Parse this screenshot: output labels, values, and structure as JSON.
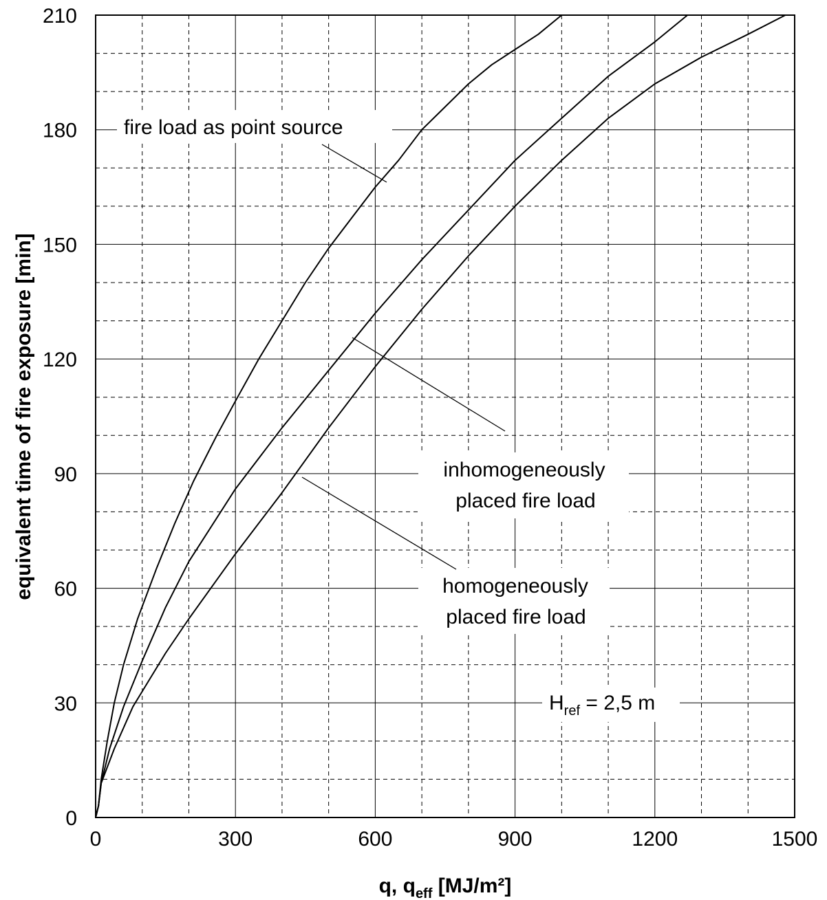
{
  "chart_data": {
    "type": "line",
    "xlabel": {
      "main": "q, q",
      "sub": "eff",
      "tail": " [MJ/m²]"
    },
    "ylabel": "equivalent time of fire exposure [min]",
    "xlim": [
      0,
      1500
    ],
    "ylim": [
      0,
      210
    ],
    "x_ticks": [
      0,
      300,
      600,
      900,
      1200,
      1500
    ],
    "y_ticks": [
      0,
      30,
      60,
      90,
      120,
      150,
      180,
      210
    ],
    "x_minor_step": 100,
    "y_minor_step": 10,
    "grid": true,
    "series": [
      {
        "key": "point",
        "points": [
          [
            0,
            0
          ],
          [
            6,
            3
          ],
          [
            12,
            10
          ],
          [
            25,
            20
          ],
          [
            40,
            30
          ],
          [
            60,
            40
          ],
          [
            90,
            52
          ],
          [
            130,
            65
          ],
          [
            170,
            77
          ],
          [
            210,
            88
          ],
          [
            260,
            100
          ],
          [
            300,
            109
          ],
          [
            350,
            120
          ],
          [
            400,
            130
          ],
          [
            450,
            140
          ],
          [
            500,
            149
          ],
          [
            550,
            157
          ],
          [
            600,
            165
          ],
          [
            650,
            172
          ],
          [
            700,
            180
          ],
          [
            750,
            186
          ],
          [
            800,
            192
          ],
          [
            850,
            197
          ],
          [
            900,
            201
          ],
          [
            950,
            205
          ],
          [
            1000,
            210
          ]
        ]
      },
      {
        "key": "inhomogeneous",
        "points": [
          [
            0,
            0
          ],
          [
            6,
            3
          ],
          [
            12,
            9
          ],
          [
            30,
            18
          ],
          [
            60,
            29
          ],
          [
            100,
            41
          ],
          [
            150,
            55
          ],
          [
            200,
            67
          ],
          [
            300,
            86
          ],
          [
            400,
            102
          ],
          [
            500,
            117
          ],
          [
            600,
            132
          ],
          [
            700,
            146
          ],
          [
            800,
            159
          ],
          [
            900,
            172
          ],
          [
            1000,
            183
          ],
          [
            1100,
            194
          ],
          [
            1200,
            203
          ],
          [
            1270,
            210
          ]
        ]
      },
      {
        "key": "homogeneous",
        "points": [
          [
            0,
            0
          ],
          [
            6,
            3
          ],
          [
            12,
            9
          ],
          [
            40,
            18
          ],
          [
            80,
            29
          ],
          [
            150,
            43
          ],
          [
            200,
            52
          ],
          [
            300,
            69
          ],
          [
            400,
            85
          ],
          [
            500,
            102
          ],
          [
            600,
            118
          ],
          [
            700,
            133
          ],
          [
            800,
            147
          ],
          [
            900,
            160
          ],
          [
            1000,
            172
          ],
          [
            1100,
            183
          ],
          [
            1200,
            192
          ],
          [
            1300,
            199
          ],
          [
            1400,
            205
          ],
          [
            1480,
            210
          ],
          [
            1500,
            210
          ]
        ]
      }
    ],
    "annotations": {
      "point_source": {
        "text": "fire load as point source"
      },
      "inhomogeneous_line1": {
        "text": "inhomogeneously"
      },
      "inhomogeneous_line2": {
        "text": "placed fire load"
      },
      "homogeneous_line1": {
        "text": "homogeneously"
      },
      "homogeneous_line2": {
        "text": "placed fire load"
      },
      "href": {
        "main": "H",
        "sub": "ref",
        "tail": " = 2,5 m"
      }
    }
  }
}
